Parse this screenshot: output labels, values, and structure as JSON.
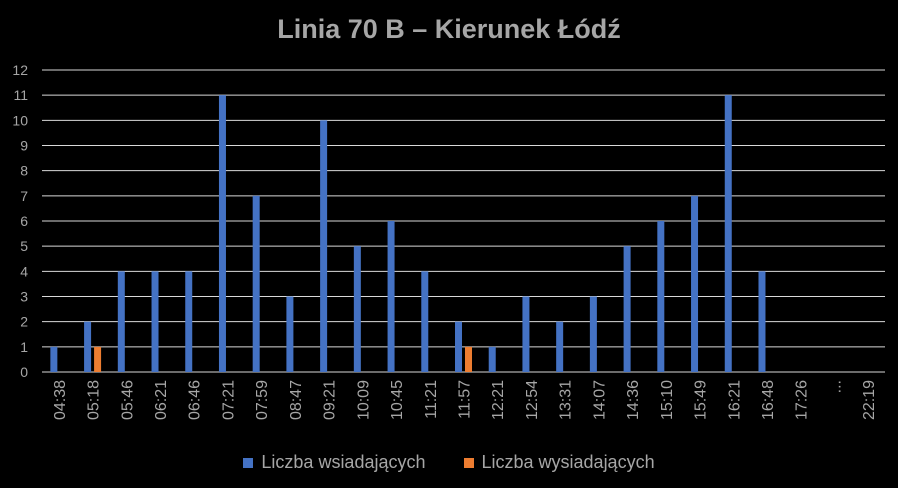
{
  "chart_data": {
    "type": "bar",
    "title": "Linia 70 B – Kierunek Łódź",
    "categories": [
      "04:38",
      "05:18",
      "05:46",
      "06:21",
      "06:46",
      "07:21",
      "07:59",
      "08:47",
      "09:21",
      "10:09",
      "10:45",
      "11:21",
      "11:57",
      "12:21",
      "12:54",
      "13:31",
      "14:07",
      "14:36",
      "15:10",
      "15:49",
      "16:21",
      "16:48",
      "17:26",
      "...",
      "22:19"
    ],
    "series": [
      {
        "name": "Liczba wsiadających",
        "color": "#4472c4",
        "values": [
          1,
          2,
          4,
          4,
          4,
          11,
          7,
          3,
          10,
          5,
          6,
          4,
          2,
          1,
          3,
          2,
          3,
          5,
          6,
          7,
          11,
          4,
          0,
          0,
          0
        ]
      },
      {
        "name": "Liczba wysiadających",
        "color": "#ed7d31",
        "values": [
          0,
          1,
          0,
          0,
          0,
          0,
          0,
          0,
          0,
          0,
          0,
          0,
          1,
          0,
          0,
          0,
          0,
          0,
          0,
          0,
          0,
          0,
          0,
          0,
          0
        ]
      }
    ],
    "ylim": [
      0,
      12
    ],
    "yticks": [
      0,
      1,
      2,
      3,
      4,
      5,
      6,
      7,
      8,
      9,
      10,
      11,
      12
    ],
    "grid": true,
    "legend": "bottom",
    "colors": {
      "background": "#000000",
      "text": "#a6a6a6",
      "grid": "#d9d9d9"
    }
  }
}
